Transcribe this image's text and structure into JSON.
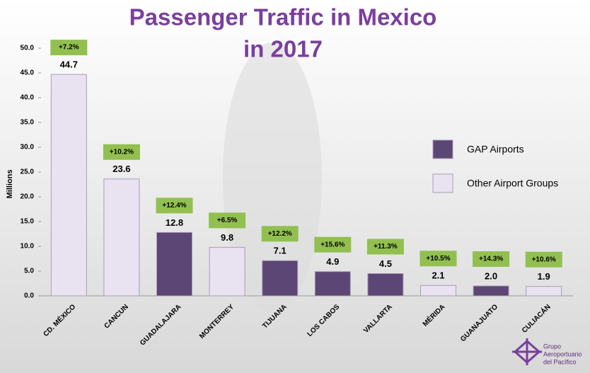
{
  "chart_data": {
    "type": "bar",
    "title_lines": [
      "Passenger Traffic in Mexico",
      "in 2017"
    ],
    "y_label": "Millions",
    "categories": [
      "CD. MÉXICO",
      "CANCUN",
      "GUADALAJARA",
      "MONTERREY",
      "TIJUANA",
      "LOS CABOS",
      "VALLARTA",
      "MÉRIDA",
      "GUANAJUATO",
      "CULIACÁN"
    ],
    "series": [
      {
        "name": "GAP Airports",
        "color": "#5b4675",
        "values": [
          null,
          null,
          12.8,
          null,
          7.1,
          4.9,
          4.5,
          null,
          2.0,
          null
        ],
        "value_labels": [
          null,
          null,
          "12.8",
          null,
          "7.1",
          "4.9",
          "4.5",
          null,
          "2.0",
          null
        ]
      },
      {
        "name": "Other Airport Groups",
        "color": "#e9e2f0",
        "values": [
          44.7,
          23.6,
          null,
          9.8,
          null,
          null,
          null,
          2.1,
          null,
          1.9
        ],
        "value_labels": [
          "44.7",
          "23.6",
          null,
          "9.8",
          null,
          null,
          null,
          "2.1",
          null,
          "1.9"
        ]
      }
    ],
    "growth_labels": [
      "+7.2%",
      "+10.2%",
      "+12.4%",
      "+6.5%",
      "+12.2%",
      "+15.6%",
      "+11.3%",
      "+10.5%",
      "+14.3%",
      "+10.6%"
    ],
    "growth_color": "#92c050",
    "ylim": [
      0,
      50
    ],
    "yticks": [
      {
        "value": 0,
        "label": "0.0"
      },
      {
        "value": 5,
        "label": "5.0"
      },
      {
        "value": 10,
        "label": "10.0"
      },
      {
        "value": 15,
        "label": "15.0"
      },
      {
        "value": 20,
        "label": "20.0"
      },
      {
        "value": 25,
        "label": "25.0"
      },
      {
        "value": 30,
        "label": "30.0"
      },
      {
        "value": 35,
        "label": "35.0"
      },
      {
        "value": 40,
        "label": "40.0"
      },
      {
        "value": 45,
        "label": "45.0"
      },
      {
        "value": 50,
        "label": "50.0"
      }
    ],
    "logo_text": [
      "Grupo",
      "Aeroportuario",
      "del Pacífico"
    ]
  }
}
